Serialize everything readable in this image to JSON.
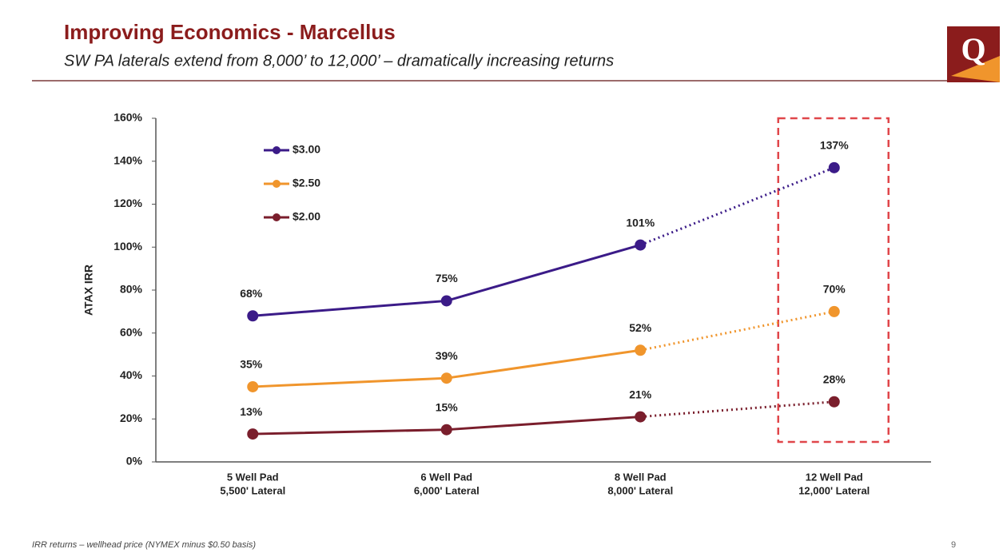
{
  "header": {
    "title": "Improving Economics - Marcellus",
    "subtitle": "SW PA laterals extend from 8,000’ to 12,000’ – dramatically increasing returns",
    "logo": "Q"
  },
  "chart_data": {
    "type": "line",
    "categories": [
      [
        "5 Well Pad",
        "5,500' Lateral"
      ],
      [
        "6 Well Pad",
        "6,000' Lateral"
      ],
      [
        "8 Well Pad",
        "8,000' Lateral"
      ],
      [
        "12 Well Pad",
        "12,000' Lateral"
      ]
    ],
    "series": [
      {
        "name": "$3.00",
        "color": "#3b1b88",
        "values": [
          68,
          75,
          101,
          137
        ],
        "value_labels": [
          "68%",
          "75%",
          "101%",
          "137%"
        ]
      },
      {
        "name": "$2.50",
        "color": "#f0952c",
        "values": [
          35,
          39,
          52,
          70
        ],
        "value_labels": [
          "35%",
          "39%",
          "52%",
          "70%"
        ]
      },
      {
        "name": "$2.00",
        "color": "#7a1e2c",
        "values": [
          13,
          15,
          21,
          28
        ],
        "value_labels": [
          "13%",
          "15%",
          "21%",
          "28%"
        ]
      }
    ],
    "y_label": "ATAX IRR",
    "ylim": [
      0,
      160
    ],
    "yticks": [
      {
        "value": 0,
        "label": "0%"
      },
      {
        "value": 20,
        "label": "20%"
      },
      {
        "value": 40,
        "label": "40%"
      },
      {
        "value": 60,
        "label": "60%"
      },
      {
        "value": 80,
        "label": "80%"
      },
      {
        "value": 100,
        "label": "100%"
      },
      {
        "value": 120,
        "label": "120%"
      },
      {
        "value": 140,
        "label": "140%"
      },
      {
        "value": 160,
        "label": "160%"
      }
    ],
    "grid": false,
    "legend": "upper left",
    "dotted_last_segment": true,
    "highlight_category": 3
  },
  "footer": {
    "note": "IRR returns – wellhead price (NYMEX minus $0.50 basis)",
    "page": "9"
  }
}
